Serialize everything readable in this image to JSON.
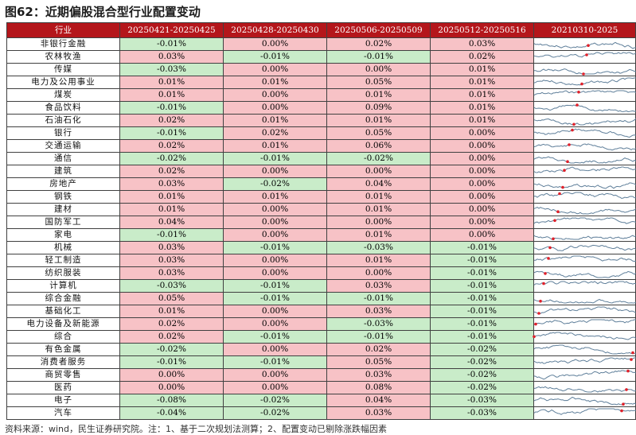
{
  "title": "图62：近期偏股混合型行业配置变动",
  "header": {
    "industry": "行业",
    "periods": [
      "20250421-20250425",
      "20250428-20250430",
      "20250506-20250509",
      "20250512-20250516"
    ],
    "trend": "20210310-2025"
  },
  "rows": [
    {
      "industry": "非银行金融",
      "values": [
        "-0.01%",
        "0.00%",
        "0.02%",
        "0.03%"
      ]
    },
    {
      "industry": "农林牧渔",
      "values": [
        "0.03%",
        "-0.01%",
        "-0.01%",
        "0.02%"
      ]
    },
    {
      "industry": "传媒",
      "values": [
        "-0.03%",
        "0.00%",
        "0.00%",
        "0.01%"
      ]
    },
    {
      "industry": "电力及公用事业",
      "values": [
        "0.01%",
        "0.01%",
        "0.05%",
        "0.01%"
      ]
    },
    {
      "industry": "煤炭",
      "values": [
        "0.01%",
        "0.00%",
        "0.01%",
        "0.01%"
      ]
    },
    {
      "industry": "食品饮料",
      "values": [
        "-0.01%",
        "0.00%",
        "0.09%",
        "0.01%"
      ]
    },
    {
      "industry": "石油石化",
      "values": [
        "0.02%",
        "0.01%",
        "0.01%",
        "0.01%"
      ]
    },
    {
      "industry": "银行",
      "values": [
        "-0.01%",
        "0.02%",
        "0.05%",
        "0.00%"
      ]
    },
    {
      "industry": "交通运输",
      "values": [
        "0.02%",
        "0.01%",
        "0.06%",
        "0.00%"
      ]
    },
    {
      "industry": "通信",
      "values": [
        "-0.02%",
        "-0.01%",
        "-0.02%",
        "0.00%"
      ]
    },
    {
      "industry": "建筑",
      "values": [
        "0.02%",
        "0.00%",
        "0.00%",
        "0.00%"
      ]
    },
    {
      "industry": "房地产",
      "values": [
        "0.03%",
        "-0.02%",
        "0.04%",
        "0.00%"
      ]
    },
    {
      "industry": "钢铁",
      "values": [
        "0.01%",
        "0.01%",
        "0.01%",
        "0.00%"
      ]
    },
    {
      "industry": "建材",
      "values": [
        "0.01%",
        "0.00%",
        "0.01%",
        "0.00%"
      ]
    },
    {
      "industry": "国防军工",
      "values": [
        "0.04%",
        "0.00%",
        "0.00%",
        "0.00%"
      ]
    },
    {
      "industry": "家电",
      "values": [
        "-0.01%",
        "0.00%",
        "0.01%",
        "0.00%"
      ]
    },
    {
      "industry": "机械",
      "values": [
        "0.03%",
        "-0.01%",
        "-0.03%",
        "-0.01%"
      ]
    },
    {
      "industry": "轻工制造",
      "values": [
        "0.03%",
        "0.00%",
        "0.01%",
        "-0.01%"
      ]
    },
    {
      "industry": "纺织服装",
      "values": [
        "0.03%",
        "0.00%",
        "0.00%",
        "-0.01%"
      ]
    },
    {
      "industry": "计算机",
      "values": [
        "-0.03%",
        "-0.01%",
        "0.03%",
        "-0.01%"
      ]
    },
    {
      "industry": "综合金融",
      "values": [
        "0.05%",
        "-0.01%",
        "-0.01%",
        "-0.01%"
      ]
    },
    {
      "industry": "基础化工",
      "values": [
        "0.01%",
        "0.00%",
        "0.03%",
        "-0.01%"
      ]
    },
    {
      "industry": "电力设备及新能源",
      "values": [
        "0.02%",
        "0.00%",
        "-0.03%",
        "-0.01%"
      ]
    },
    {
      "industry": "综合",
      "values": [
        "0.02%",
        "-0.01%",
        "-0.01%",
        "-0.01%"
      ]
    },
    {
      "industry": "有色金属",
      "values": [
        "-0.02%",
        "0.00%",
        "0.02%",
        "-0.02%"
      ]
    },
    {
      "industry": "消费者服务",
      "values": [
        "-0.01%",
        "-0.01%",
        "0.05%",
        "-0.02%"
      ]
    },
    {
      "industry": "商贸零售",
      "values": [
        "0.00%",
        "0.00%",
        "0.03%",
        "-0.02%"
      ]
    },
    {
      "industry": "医药",
      "values": [
        "0.00%",
        "0.00%",
        "0.08%",
        "-0.02%"
      ]
    },
    {
      "industry": "电子",
      "values": [
        "-0.08%",
        "-0.02%",
        "0.04%",
        "-0.03%"
      ]
    },
    {
      "industry": "汽车",
      "values": [
        "-0.04%",
        "-0.02%",
        "0.03%",
        "-0.03%"
      ]
    }
  ],
  "colors": {
    "header_bg": "#b4161b",
    "positive_bg": "#f7c2c6",
    "negative_bg": "#c9ecc9",
    "sparkline": "#5f7f9a",
    "marker": "#e0202a"
  },
  "footer": "资料来源：wind，民生证券研究院。注：1、基于二次规划法测算；2、配置变动已剔除涨跌幅因素"
}
